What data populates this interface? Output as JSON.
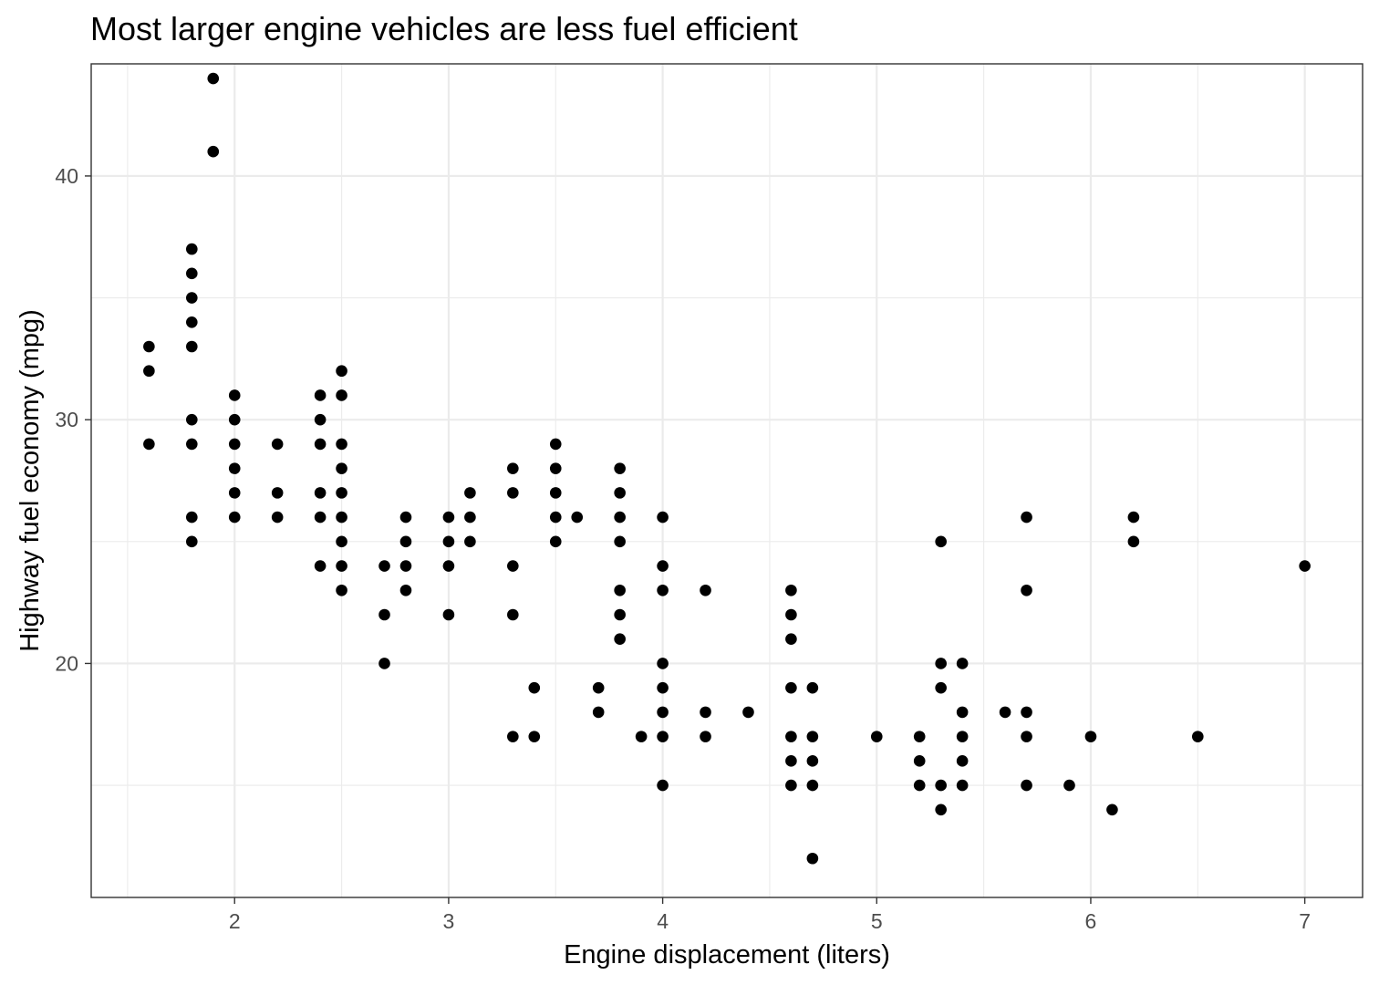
{
  "chart_data": {
    "type": "scatter",
    "title": "Most larger engine vehicles are less fuel efficient",
    "xlabel": "Engine displacement (liters)",
    "ylabel": "Highway fuel economy (mpg)",
    "xlim": [
      1.33,
      7.27
    ],
    "ylim": [
      10.4,
      44.6
    ],
    "x_ticks": [
      2,
      3,
      4,
      5,
      6,
      7
    ],
    "y_ticks": [
      20,
      30,
      40
    ],
    "x_minor_ticks": [
      1.5,
      2.5,
      3.5,
      4.5,
      5.5,
      6.5
    ],
    "y_minor_ticks": [
      15,
      25,
      35
    ],
    "grid": true,
    "legend": "none",
    "point_color": "#000000",
    "series": [
      {
        "points": [
          [
            1.6,
            33
          ],
          [
            1.6,
            32
          ],
          [
            1.6,
            29
          ],
          [
            1.8,
            37
          ],
          [
            1.8,
            36
          ],
          [
            1.8,
            35
          ],
          [
            1.8,
            34
          ],
          [
            1.8,
            33
          ],
          [
            1.8,
            30
          ],
          [
            1.8,
            29
          ],
          [
            1.8,
            26
          ],
          [
            1.8,
            25
          ],
          [
            1.9,
            44
          ],
          [
            1.9,
            41
          ],
          [
            2.0,
            31
          ],
          [
            2.0,
            30
          ],
          [
            2.0,
            29
          ],
          [
            2.0,
            28
          ],
          [
            2.0,
            27
          ],
          [
            2.0,
            26
          ],
          [
            2.2,
            29
          ],
          [
            2.2,
            27
          ],
          [
            2.2,
            26
          ],
          [
            2.4,
            31
          ],
          [
            2.4,
            30
          ],
          [
            2.4,
            29
          ],
          [
            2.4,
            27
          ],
          [
            2.4,
            26
          ],
          [
            2.4,
            24
          ],
          [
            2.5,
            32
          ],
          [
            2.5,
            31
          ],
          [
            2.5,
            29
          ],
          [
            2.5,
            28
          ],
          [
            2.5,
            27
          ],
          [
            2.5,
            26
          ],
          [
            2.5,
            25
          ],
          [
            2.5,
            24
          ],
          [
            2.5,
            23
          ],
          [
            2.7,
            24
          ],
          [
            2.7,
            22
          ],
          [
            2.7,
            20
          ],
          [
            2.8,
            26
          ],
          [
            2.8,
            25
          ],
          [
            2.8,
            24
          ],
          [
            2.8,
            23
          ],
          [
            3.0,
            26
          ],
          [
            3.0,
            25
          ],
          [
            3.0,
            24
          ],
          [
            3.0,
            22
          ],
          [
            3.1,
            27
          ],
          [
            3.1,
            26
          ],
          [
            3.1,
            25
          ],
          [
            3.3,
            28
          ],
          [
            3.3,
            27
          ],
          [
            3.3,
            24
          ],
          [
            3.3,
            22
          ],
          [
            3.3,
            17
          ],
          [
            3.4,
            19
          ],
          [
            3.4,
            17
          ],
          [
            3.5,
            29
          ],
          [
            3.5,
            28
          ],
          [
            3.5,
            27
          ],
          [
            3.5,
            26
          ],
          [
            3.5,
            25
          ],
          [
            3.6,
            26
          ],
          [
            3.7,
            19
          ],
          [
            3.7,
            18
          ],
          [
            3.8,
            28
          ],
          [
            3.8,
            27
          ],
          [
            3.8,
            26
          ],
          [
            3.8,
            25
          ],
          [
            3.8,
            23
          ],
          [
            3.8,
            22
          ],
          [
            3.8,
            21
          ],
          [
            3.9,
            17
          ],
          [
            4.0,
            26
          ],
          [
            4.0,
            24
          ],
          [
            4.0,
            23
          ],
          [
            4.0,
            20
          ],
          [
            4.0,
            19
          ],
          [
            4.0,
            18
          ],
          [
            4.0,
            17
          ],
          [
            4.0,
            15
          ],
          [
            4.2,
            23
          ],
          [
            4.2,
            18
          ],
          [
            4.2,
            17
          ],
          [
            4.4,
            18
          ],
          [
            4.6,
            23
          ],
          [
            4.6,
            22
          ],
          [
            4.6,
            21
          ],
          [
            4.6,
            19
          ],
          [
            4.6,
            17
          ],
          [
            4.6,
            16
          ],
          [
            4.6,
            15
          ],
          [
            4.7,
            19
          ],
          [
            4.7,
            17
          ],
          [
            4.7,
            16
          ],
          [
            4.7,
            15
          ],
          [
            4.7,
            12
          ],
          [
            5.0,
            17
          ],
          [
            5.2,
            17
          ],
          [
            5.2,
            16
          ],
          [
            5.2,
            15
          ],
          [
            5.3,
            25
          ],
          [
            5.3,
            20
          ],
          [
            5.3,
            19
          ],
          [
            5.3,
            15
          ],
          [
            5.3,
            14
          ],
          [
            5.4,
            20
          ],
          [
            5.4,
            18
          ],
          [
            5.4,
            17
          ],
          [
            5.4,
            16
          ],
          [
            5.4,
            15
          ],
          [
            5.6,
            18
          ],
          [
            5.7,
            26
          ],
          [
            5.7,
            23
          ],
          [
            5.7,
            18
          ],
          [
            5.7,
            17
          ],
          [
            5.7,
            15
          ],
          [
            5.9,
            15
          ],
          [
            6.0,
            17
          ],
          [
            6.1,
            14
          ],
          [
            6.2,
            26
          ],
          [
            6.2,
            25
          ],
          [
            6.5,
            17
          ],
          [
            7.0,
            24
          ]
        ]
      }
    ]
  }
}
